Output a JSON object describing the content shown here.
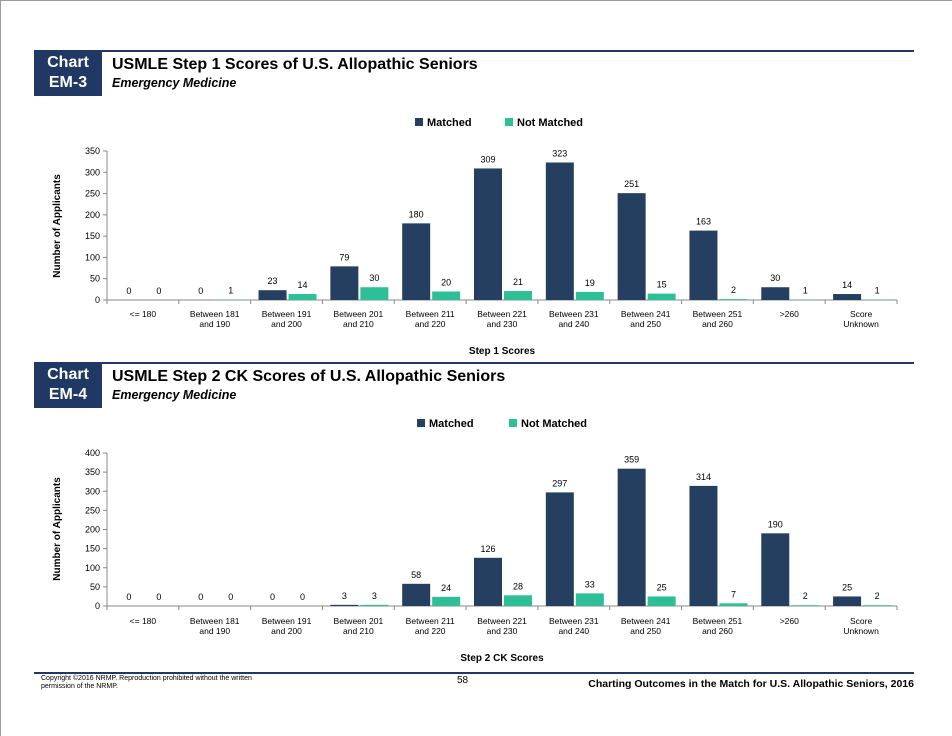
{
  "colors": {
    "matched": "#243f60",
    "not_matched": "#2dbf96",
    "header": "#1f3864"
  },
  "charts": [
    {
      "badge_line1": "Chart",
      "badge_line2": "EM-3",
      "title": "USMLE Step 1 Scores of U.S. Allopathic Seniors",
      "subtitle": "Emergency Medicine"
    },
    {
      "badge_line1": "Chart",
      "badge_line2": "EM-4",
      "title": "USMLE Step 2 CK Scores of U.S. Allopathic Seniors",
      "subtitle": "Emergency Medicine"
    }
  ],
  "chart_data": [
    {
      "type": "bar",
      "title": "USMLE Step 1 Scores of U.S. Allopathic Seniors",
      "xlabel": "Step 1 Scores",
      "ylabel": "Number of Applicants",
      "ylim": [
        0,
        350
      ],
      "yticks": [
        0,
        50,
        100,
        150,
        200,
        250,
        300,
        350
      ],
      "legend_position": "top-center",
      "categories": [
        [
          "<= 180"
        ],
        [
          "Between 181",
          "and 190"
        ],
        [
          "Between 191",
          "and 200"
        ],
        [
          "Between 201",
          "and 210"
        ],
        [
          "Between 211",
          "and 220"
        ],
        [
          "Between 221",
          "and 230"
        ],
        [
          "Between 231",
          "and 240"
        ],
        [
          "Between 241",
          "and 250"
        ],
        [
          "Between 251",
          "and 260"
        ],
        [
          ">260"
        ],
        [
          "Score",
          "Unknown"
        ]
      ],
      "series": [
        {
          "name": "Matched",
          "values": [
            0,
            0,
            23,
            79,
            180,
            309,
            323,
            251,
            163,
            30,
            14
          ]
        },
        {
          "name": "Not Matched",
          "values": [
            0,
            1,
            14,
            30,
            20,
            21,
            19,
            15,
            2,
            1,
            1
          ]
        }
      ]
    },
    {
      "type": "bar",
      "title": "USMLE Step 2 CK Scores of U.S. Allopathic Seniors",
      "xlabel": "Step 2 CK Scores",
      "ylabel": "Number of Applicants",
      "ylim": [
        0,
        400
      ],
      "yticks": [
        0,
        50,
        100,
        150,
        200,
        250,
        300,
        350,
        400
      ],
      "legend_position": "top-center",
      "categories": [
        [
          "<= 180"
        ],
        [
          "Between 181",
          "and 190"
        ],
        [
          "Between 191",
          "and 200"
        ],
        [
          "Between 201",
          "and 210"
        ],
        [
          "Between 211",
          "and 220"
        ],
        [
          "Between 221",
          "and 230"
        ],
        [
          "Between 231",
          "and 240"
        ],
        [
          "Between 241",
          "and 250"
        ],
        [
          "Between 251",
          "and 260"
        ],
        [
          ">260"
        ],
        [
          "Score",
          "Unknown"
        ]
      ],
      "series": [
        {
          "name": "Matched",
          "values": [
            0,
            0,
            0,
            3,
            58,
            126,
            297,
            359,
            314,
            190,
            25
          ]
        },
        {
          "name": "Not Matched",
          "values": [
            0,
            0,
            0,
            3,
            24,
            28,
            33,
            25,
            7,
            2,
            2
          ]
        }
      ]
    }
  ],
  "footer": {
    "copyright": "Copyright ©2016 NRMP. Reproduction prohibited without the written permission of the NRMP.",
    "page_number": "58",
    "title": "Charting Outcomes in the Match for U.S. Allopathic Seniors, 2016"
  }
}
